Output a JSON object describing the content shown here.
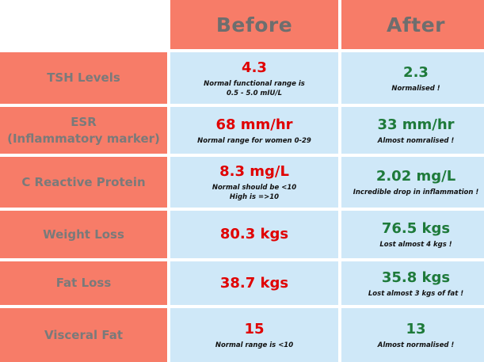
{
  "header": {
    "before": "Before",
    "after": "After"
  },
  "rows": [
    {
      "label_lines": [
        "TSH Levels"
      ],
      "before": {
        "value": "4.3",
        "note_lines": [
          "Normal functional range is",
          "0.5 - 5.0 mIU/L"
        ]
      },
      "after": {
        "value": "2.3",
        "note_lines": [
          "Normalised !"
        ]
      }
    },
    {
      "label_lines": [
        "ESR",
        "(Inflammatory marker)"
      ],
      "before": {
        "value": "68 mm/hr",
        "note_lines": [
          "Normal range for women 0-29"
        ]
      },
      "after": {
        "value": "33 mm/hr",
        "note_lines": [
          "Almost nomralised !"
        ]
      }
    },
    {
      "label_lines": [
        "C Reactive Protein"
      ],
      "before": {
        "value": "8.3 mg/L",
        "note_lines": [
          "Normal should be <10",
          "High is =>10"
        ]
      },
      "after": {
        "value": "2.02 mg/L",
        "note_lines": [
          "Incredible drop in inflammation !"
        ]
      }
    },
    {
      "label_lines": [
        "Weight Loss"
      ],
      "before": {
        "value": "80.3 kgs",
        "note_lines": []
      },
      "after": {
        "value": "76.5 kgs",
        "note_lines": [
          "Lost almost 4 kgs !"
        ]
      }
    },
    {
      "label_lines": [
        "Fat Loss"
      ],
      "before": {
        "value": "38.7 kgs",
        "note_lines": []
      },
      "after": {
        "value": "35.8 kgs",
        "note_lines": [
          "Lost almost 3 kgs of fat !"
        ]
      }
    },
    {
      "label_lines": [
        "Visceral Fat"
      ],
      "before": {
        "value": "15",
        "note_lines": [
          "Normal range is <10"
        ]
      },
      "after": {
        "value": "13",
        "note_lines": [
          "Almost normalised !"
        ]
      }
    }
  ],
  "colors": {
    "header_bg": "#f77c68",
    "cell_bg": "#cfe8f8",
    "before_value": "#e00000",
    "after_value": "#1e7a3a",
    "header_text": "#6e6e6e"
  }
}
